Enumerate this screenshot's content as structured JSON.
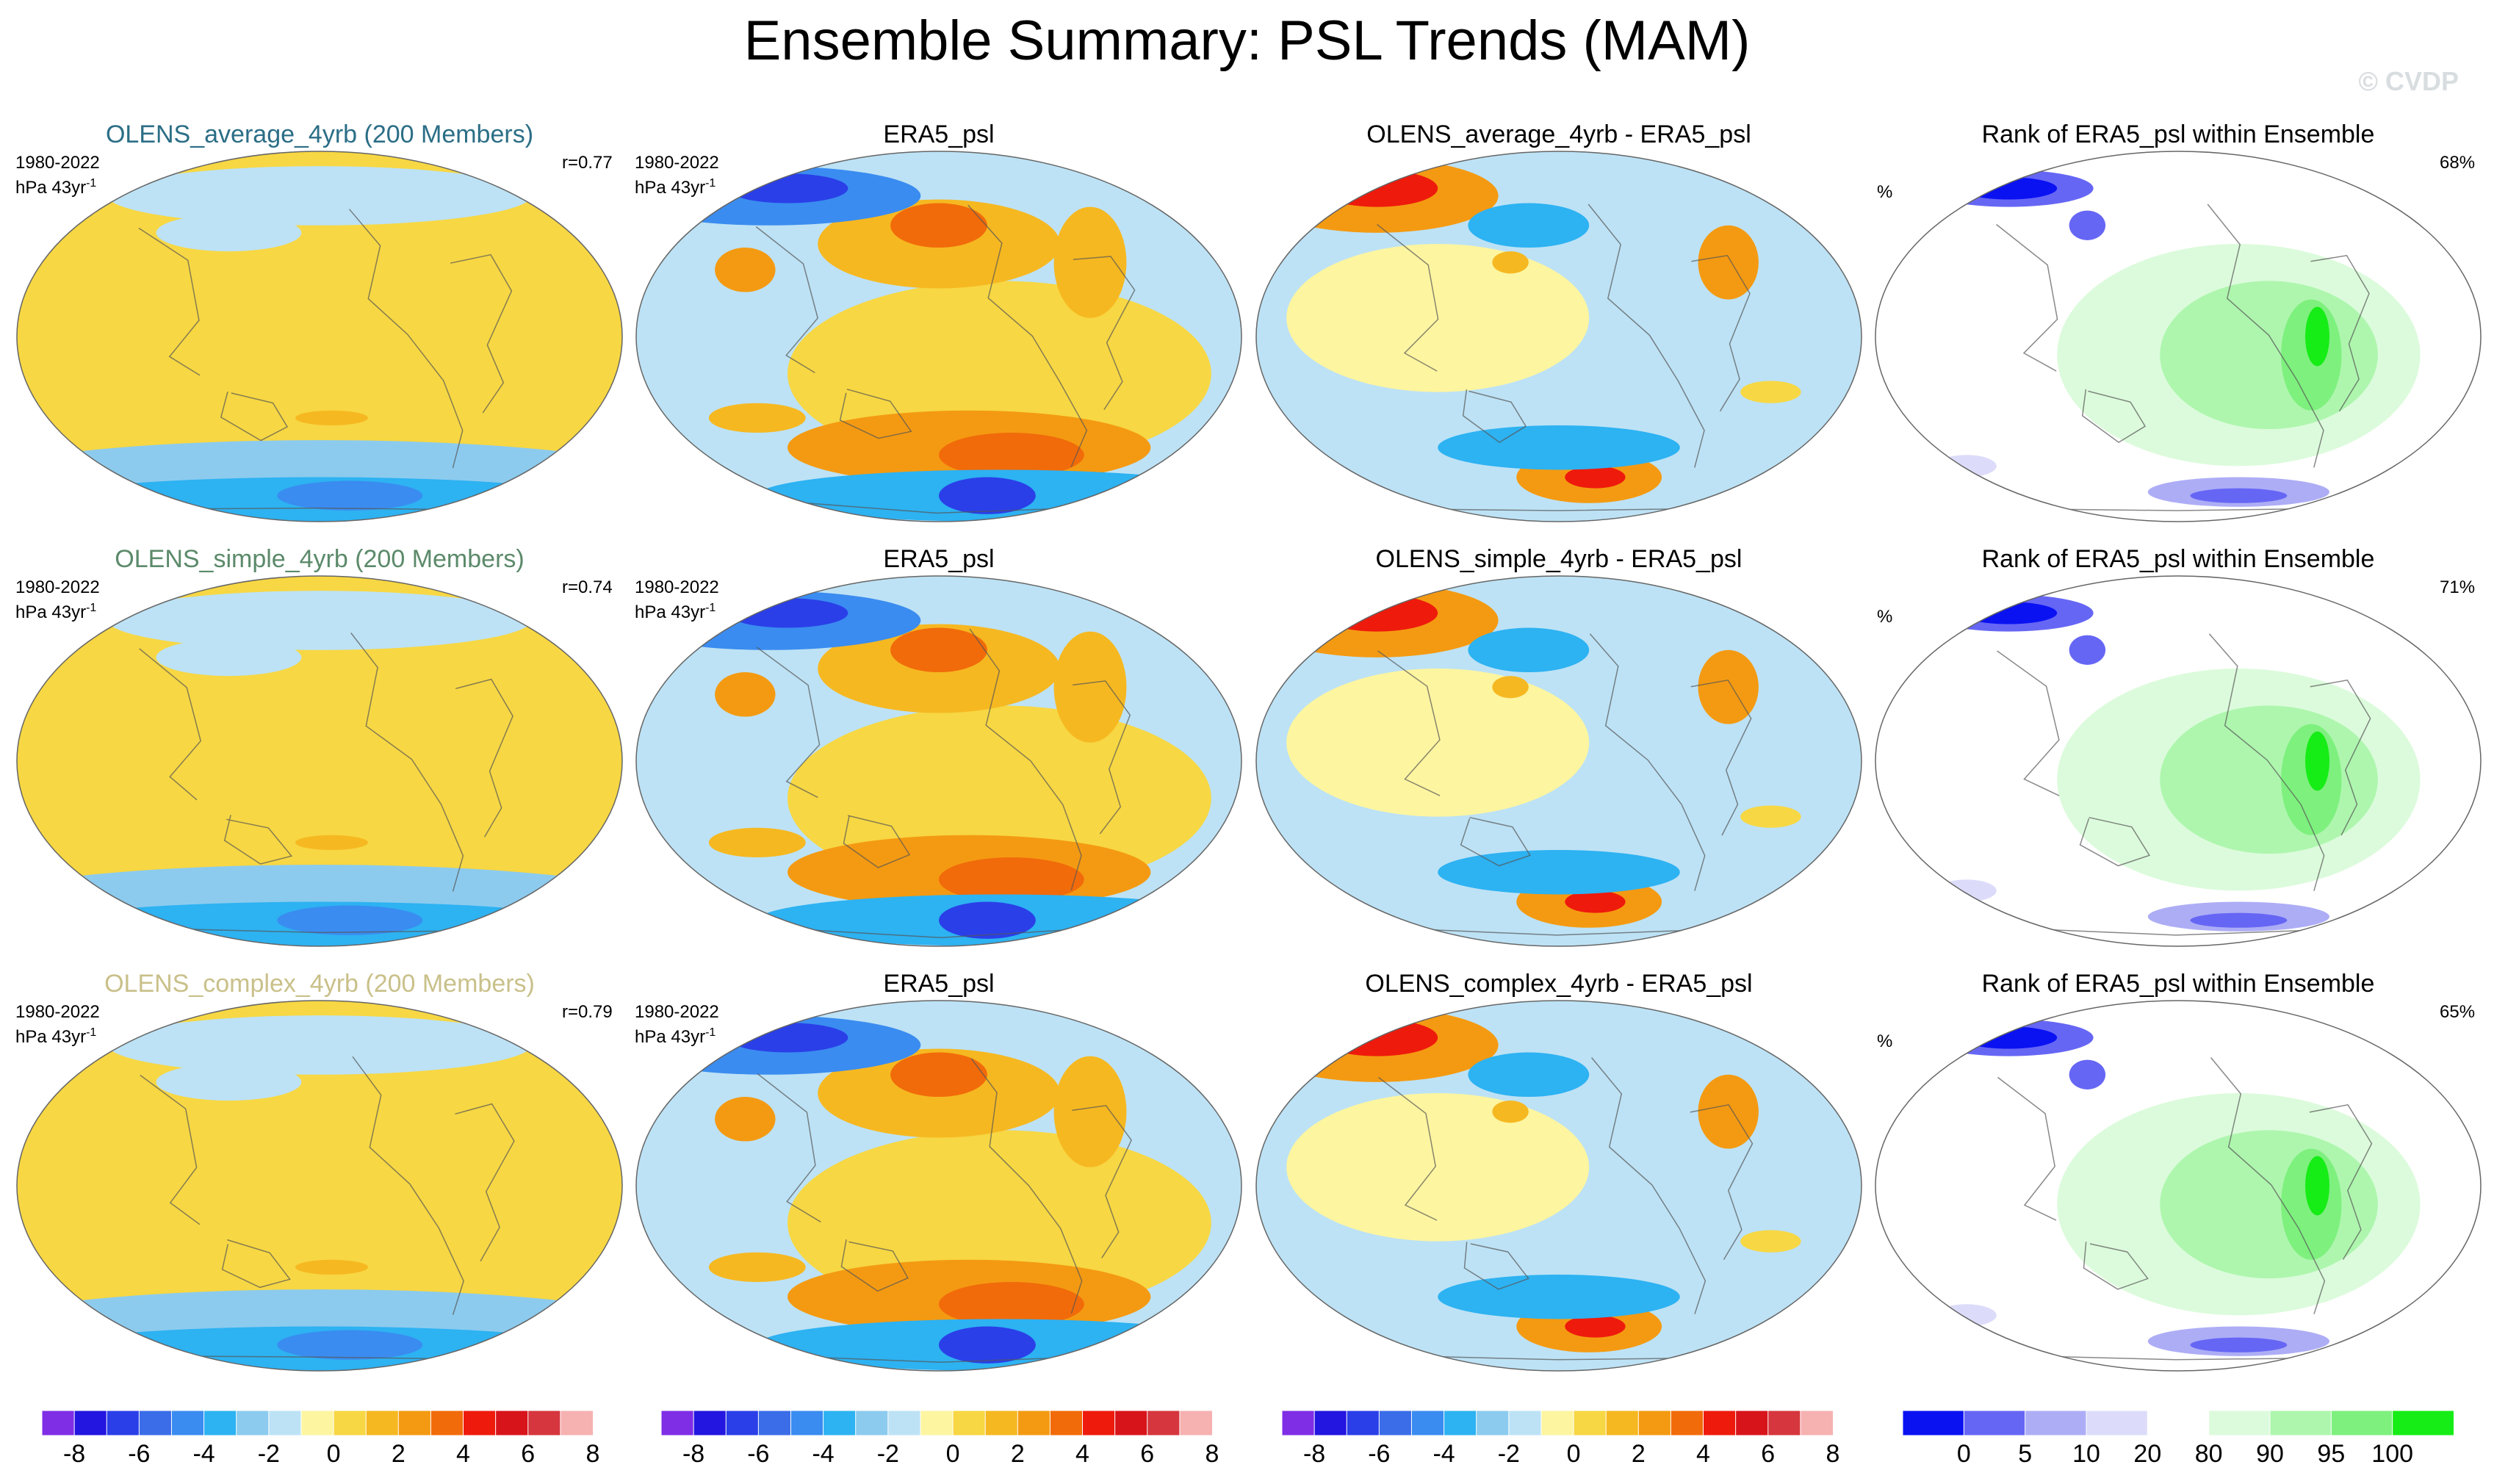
{
  "header": {
    "title": "Ensemble Summary: PSL Trends (MAM)",
    "watermark": "© CVDP"
  },
  "rows": [
    {
      "ensemble_title": "OLENS_average_4yrb (200 Members)",
      "ensemble_title_color": "#2b6e86",
      "period": "1980-2022",
      "units_base": "hPa 43yr",
      "units_sup": "-1",
      "r_value": "r=0.77",
      "obs_title": "ERA5_psl",
      "diff_title": "OLENS_average_4yrb - ERA5_psl",
      "rank_title": "Rank of ERA5_psl within Ensemble",
      "rank_unit": "%",
      "rank_percent": "68%"
    },
    {
      "ensemble_title": "OLENS_simple_4yrb (200 Members)",
      "ensemble_title_color": "#5b8a6a",
      "period": "1980-2022",
      "units_base": "hPa 43yr",
      "units_sup": "-1",
      "r_value": "r=0.74",
      "obs_title": "ERA5_psl",
      "diff_title": "OLENS_simple_4yrb - ERA5_psl",
      "rank_title": "Rank of ERA5_psl within Ensemble",
      "rank_unit": "%",
      "rank_percent": "71%"
    },
    {
      "ensemble_title": "OLENS_complex_4yrb (200 Members)",
      "ensemble_title_color": "#c9c08a",
      "period": "1980-2022",
      "units_base": "hPa 43yr",
      "units_sup": "-1",
      "r_value": "r=0.79",
      "obs_title": "ERA5_psl",
      "diff_title": "OLENS_complex_4yrb - ERA5_psl",
      "rank_title": "Rank of ERA5_psl within Ensemble",
      "rank_unit": "%",
      "rank_percent": "65%"
    }
  ],
  "colorbars": {
    "trend": {
      "colors": [
        "#7f2ee6",
        "#2316e0",
        "#2a3fe8",
        "#3b6de8",
        "#3a8cf0",
        "#2db2f2",
        "#8ccbee",
        "#bde2f5",
        "#fdf5a0",
        "#f7d743",
        "#f6b821",
        "#f49a12",
        "#f16b0a",
        "#ee1a0c",
        "#d8141b",
        "#d6363d",
        "#f6b1b1"
      ],
      "ticks": [
        "-8",
        "-6",
        "-4",
        "-2",
        "0",
        "2",
        "4",
        "6",
        "8"
      ]
    },
    "rank": {
      "colors": [
        "#0a12f2",
        "#6666f5",
        "#adadf6",
        "#dcdcfa",
        "#ffffff",
        "#dcfbdc",
        "#aef6ae",
        "#7ef07e",
        "#16ec16"
      ],
      "ticks": [
        "0",
        "5",
        "10",
        "20",
        "80",
        "90",
        "95",
        "100"
      ],
      "tick_boundaries": [
        1,
        2,
        3,
        4,
        5,
        6,
        7,
        8
      ]
    }
  },
  "chart_data": [
    {
      "type": "heatmap",
      "panel": "row1-model",
      "title": "OLENS_average_4yrb (200 Members)",
      "units": "hPa 43yr-1",
      "period": "1980-2022",
      "r": 0.77,
      "pattern": "weak positive trends (0 to 2) over most of globe; negative (-2 to -4) around Antarctica",
      "levels": [
        -8,
        -7,
        -6,
        -5,
        -4,
        -3,
        -2,
        -1,
        0,
        1,
        2,
        3,
        4,
        5,
        6,
        7,
        8
      ]
    },
    {
      "type": "heatmap",
      "panel": "row1-obs",
      "title": "ERA5_psl",
      "units": "hPa 43yr-1",
      "pattern": "positive over N Pacific and S Pacific (up to 5); negative over Siberia/Arctic and near Antarctica (down to -7)"
    },
    {
      "type": "heatmap",
      "panel": "row1-diff",
      "title": "OLENS_average_4yrb - ERA5_psl",
      "pattern": "positive over Siberia (up to 7) and Amundsen Sea (up to 5); negative over N Pacific and Southern Ocean"
    },
    {
      "type": "heatmap",
      "panel": "row1-rank",
      "title": "Rank of ERA5_psl within Ensemble",
      "units": "%",
      "global_percent": 68,
      "levels": [
        0,
        5,
        10,
        20,
        80,
        90,
        95,
        100
      ]
    },
    {
      "type": "heatmap",
      "panel": "row2-model",
      "title": "OLENS_simple_4yrb (200 Members)",
      "r": 0.74
    },
    {
      "type": "heatmap",
      "panel": "row2-obs",
      "title": "ERA5_psl"
    },
    {
      "type": "heatmap",
      "panel": "row2-diff",
      "title": "OLENS_simple_4yrb - ERA5_psl"
    },
    {
      "type": "heatmap",
      "panel": "row2-rank",
      "title": "Rank of ERA5_psl within Ensemble",
      "global_percent": 71
    },
    {
      "type": "heatmap",
      "panel": "row3-model",
      "title": "OLENS_complex_4yrb (200 Members)",
      "r": 0.79
    },
    {
      "type": "heatmap",
      "panel": "row3-obs",
      "title": "ERA5_psl"
    },
    {
      "type": "heatmap",
      "panel": "row3-diff",
      "title": "OLENS_complex_4yrb - ERA5_psl"
    },
    {
      "type": "heatmap",
      "panel": "row3-rank",
      "title": "Rank of ERA5_psl within Ensemble",
      "global_percent": 65
    }
  ]
}
